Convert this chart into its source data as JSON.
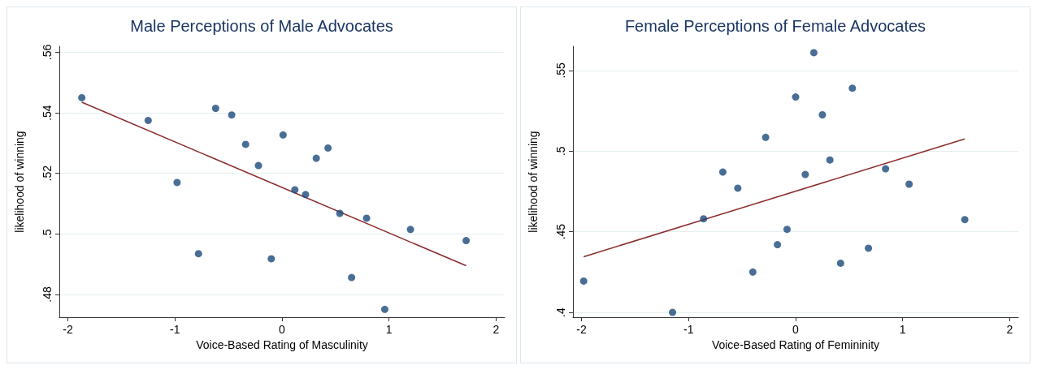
{
  "chart_data": [
    {
      "type": "scatter",
      "title": "Male Perceptions of Male Advocates",
      "xlabel": "Voice-Based Rating of Masculinity",
      "ylabel": "likelihood of winning",
      "xlim": [
        -2.08,
        2.08
      ],
      "xticks": [
        -2,
        -1,
        0,
        1,
        2
      ],
      "ylim": [
        0.4725,
        0.562
      ],
      "yticks": [
        {
          "value": 0.48,
          "label": ".48"
        },
        {
          "value": 0.5,
          "label": ".5"
        },
        {
          "value": 0.52,
          "label": ".52"
        },
        {
          "value": 0.54,
          "label": ".54"
        },
        {
          "value": 0.56,
          "label": ".56"
        }
      ],
      "grid": "y",
      "series": [
        {
          "color": "#1b4a7a",
          "marker": "circle",
          "x": [
            -1.87,
            -1.25,
            -0.98,
            -0.78,
            -0.62,
            -0.47,
            -0.34,
            -0.22,
            -0.1,
            0.01,
            0.12,
            0.22,
            0.32,
            0.43,
            0.54,
            0.65,
            0.79,
            0.96,
            1.2,
            1.72
          ],
          "values": [
            0.545,
            0.5375,
            0.517,
            0.4935,
            0.5415,
            0.5393,
            0.5296,
            0.5226,
            0.4918,
            0.5327,
            0.5146,
            0.513,
            0.525,
            0.5284,
            0.5068,
            0.4856,
            0.5052,
            0.4751,
            0.5015,
            0.4978
          ]
        },
        {
          "type": "line",
          "color": "#8b2a2a",
          "marker": "none",
          "x": [
            -1.87,
            1.72
          ],
          "values": [
            0.5435,
            0.4895
          ]
        }
      ]
    },
    {
      "type": "scatter",
      "title": "Female Perceptions of Female Advocates",
      "xlabel": "Voice-Based Rating of Femininity",
      "ylabel": "likelihood of winning",
      "xlim": [
        -2.08,
        2.08
      ],
      "xticks": [
        -2,
        -1,
        0,
        1,
        2
      ],
      "ylim": [
        0.397,
        0.565
      ],
      "yticks": [
        {
          "value": 0.4,
          "label": ".4"
        },
        {
          "value": 0.45,
          "label": ".45"
        },
        {
          "value": 0.5,
          "label": ".5"
        },
        {
          "value": 0.55,
          "label": ".55"
        }
      ],
      "grid": "y",
      "series": [
        {
          "color": "#1b4a7a",
          "marker": "circle",
          "x": [
            -1.98,
            -1.15,
            -0.86,
            -0.68,
            -0.54,
            -0.4,
            -0.28,
            -0.17,
            -0.08,
            0.0,
            0.09,
            0.17,
            0.25,
            0.32,
            0.42,
            0.53,
            0.68,
            0.84,
            1.06,
            1.58
          ],
          "values": [
            0.4194,
            0.4,
            0.458,
            0.487,
            0.477,
            0.425,
            0.5085,
            0.442,
            0.4515,
            0.5335,
            0.4855,
            0.561,
            0.5225,
            0.4945,
            0.4305,
            0.539,
            0.4398,
            0.489,
            0.4795,
            0.4575
          ]
        },
        {
          "type": "line",
          "color": "#8b2a2a",
          "marker": "none",
          "x": [
            -1.98,
            1.58
          ],
          "values": [
            0.4345,
            0.5075
          ]
        }
      ]
    }
  ]
}
